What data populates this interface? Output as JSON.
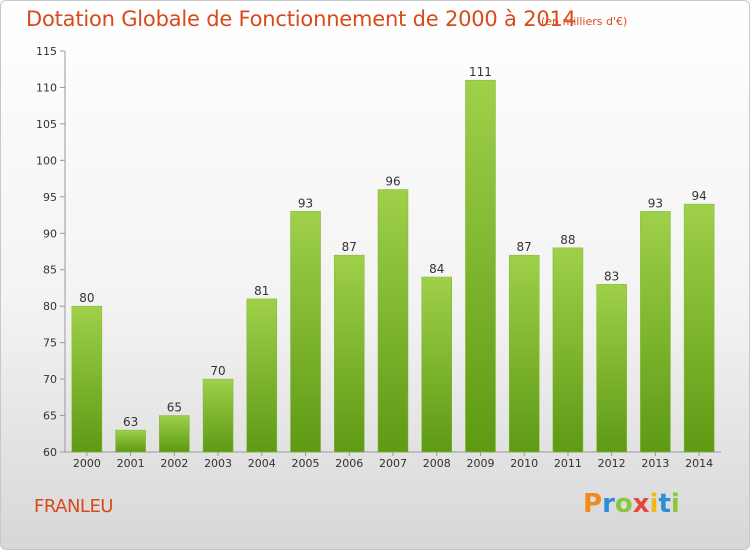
{
  "header": {
    "title": "Dotation Globale de Fonctionnement de 2000 à 2014",
    "subtitle": "(en milliers d'€)"
  },
  "footer": {
    "commune": "FRANLEU",
    "logo_text": "Proxiti",
    "logo_colors": [
      "#f08a1c",
      "#2a8fd6",
      "#8cc63f",
      "#e8463a",
      "#f0b81c",
      "#2a8fd6",
      "#8cc63f"
    ]
  },
  "chart_data": {
    "type": "bar",
    "categories": [
      "2000",
      "2001",
      "2002",
      "2003",
      "2004",
      "2005",
      "2006",
      "2007",
      "2008",
      "2009",
      "2010",
      "2011",
      "2012",
      "2013",
      "2014"
    ],
    "values": [
      80,
      63,
      65,
      70,
      81,
      93,
      87,
      96,
      84,
      111,
      87,
      88,
      83,
      93,
      94
    ],
    "ylim": [
      60,
      115
    ],
    "yticks": [
      60,
      65,
      70,
      75,
      80,
      85,
      90,
      95,
      100,
      105,
      110,
      115
    ],
    "bar_color_top": "#9fd04a",
    "bar_color_bottom": "#5e9a14",
    "grid": false,
    "data_labels": true
  }
}
